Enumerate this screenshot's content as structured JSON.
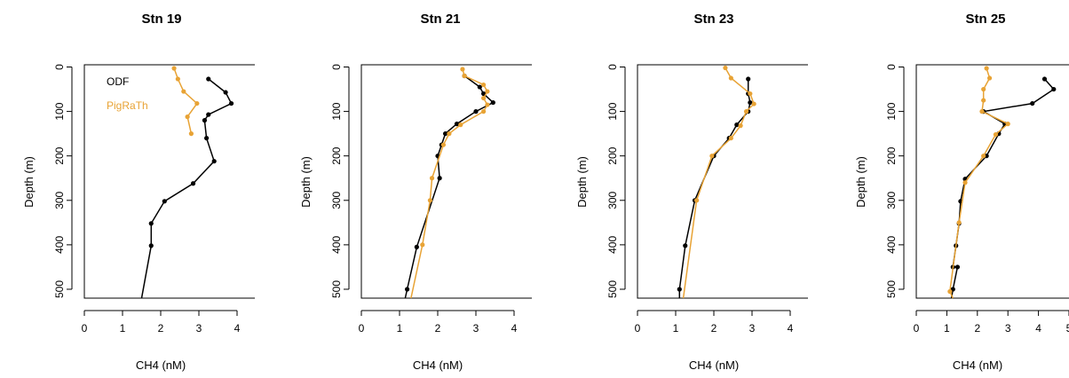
{
  "colors": {
    "ODF": "#000000",
    "PigRaTh": "#E8A335"
  },
  "chart_data": [
    {
      "type": "line",
      "title": "Stn 19",
      "xlabel": "CH4 (nM)",
      "ylabel": "Depth (m)",
      "xlim": [
        0,
        4
      ],
      "ylim": [
        520,
        -5
      ],
      "y_reversed": true,
      "x_ticks": [
        "0",
        "1",
        "2",
        "3",
        "4"
      ],
      "y_ticks": [
        "0",
        "100",
        "200",
        "300",
        "400",
        "500"
      ],
      "legend": {
        "placement": "top-left",
        "entries": [
          "ODF",
          "PigRaTh"
        ]
      },
      "series": [
        {
          "name": "ODF",
          "color": "#000000",
          "x": [
            3.25,
            3.7,
            3.85,
            3.25,
            3.15,
            3.2,
            3.4,
            2.85,
            2.1,
            1.75,
            1.75,
            1.5
          ],
          "y": [
            27,
            57,
            82,
            107,
            120,
            160,
            212,
            262,
            302,
            352,
            402,
            520
          ]
        },
        {
          "name": "PigRaTh",
          "color": "#E8A335",
          "x": [
            2.35,
            2.45,
            2.6,
            2.95,
            2.7,
            2.8
          ],
          "y": [
            3,
            27,
            55,
            82,
            112,
            150
          ]
        }
      ]
    },
    {
      "type": "line",
      "title": "Stn 21",
      "xlabel": "CH4 (nM)",
      "ylabel": "Depth (m)",
      "xlim": [
        0,
        4
      ],
      "ylim": [
        520,
        -5
      ],
      "y_reversed": true,
      "x_ticks": [
        "0",
        "1",
        "2",
        "3",
        "4"
      ],
      "y_ticks": [
        "0",
        "100",
        "200",
        "300",
        "400",
        "500"
      ],
      "series": [
        {
          "name": "ODF",
          "color": "#000000",
          "x": [
            2.7,
            3.1,
            3.2,
            3.45,
            3.0,
            2.5,
            2.2,
            2.1,
            2.0,
            2.05,
            1.45,
            1.2,
            1.15
          ],
          "y": [
            20,
            45,
            60,
            80,
            100,
            128,
            150,
            175,
            200,
            250,
            405,
            500,
            520
          ]
        },
        {
          "name": "PigRaTh",
          "color": "#E8A335",
          "x": [
            2.65,
            2.7,
            3.2,
            3.3,
            3.2,
            3.3,
            3.2,
            2.6,
            2.3,
            2.15,
            1.85,
            1.8,
            1.6,
            1.3
          ],
          "y": [
            5,
            20,
            40,
            55,
            70,
            85,
            100,
            130,
            150,
            175,
            250,
            300,
            400,
            520
          ]
        }
      ]
    },
    {
      "type": "line",
      "title": "Stn 23",
      "xlabel": "CH4 (nM)",
      "ylabel": "Depth (m)",
      "xlim": [
        0,
        4
      ],
      "ylim": [
        520,
        -5
      ],
      "y_reversed": true,
      "x_ticks": [
        "0",
        "1",
        "2",
        "3",
        "4"
      ],
      "y_ticks": [
        "0",
        "100",
        "200",
        "300",
        "400",
        "500"
      ],
      "series": [
        {
          "name": "ODF",
          "color": "#000000",
          "x": [
            2.9,
            2.9,
            2.95,
            2.9,
            2.6,
            2.4,
            2.0,
            1.5,
            1.25,
            1.1,
            1.1
          ],
          "y": [
            27,
            60,
            80,
            100,
            130,
            160,
            200,
            300,
            402,
            500,
            520
          ]
        },
        {
          "name": "PigRaTh",
          "color": "#E8A335",
          "x": [
            2.3,
            2.45,
            2.95,
            3.05,
            2.85,
            2.7,
            2.45,
            1.95,
            1.55,
            1.2
          ],
          "y": [
            2,
            25,
            60,
            83,
            100,
            132,
            160,
            200,
            300,
            520
          ]
        }
      ]
    },
    {
      "type": "line",
      "title": "Stn 25",
      "xlabel": "CH4 (nM)",
      "ylabel": "Depth (m)",
      "xlim": [
        0,
        5
      ],
      "ylim": [
        520,
        -5
      ],
      "y_reversed": true,
      "x_ticks": [
        "0",
        "1",
        "2",
        "3",
        "4",
        "5"
      ],
      "y_ticks": [
        "0",
        "100",
        "200",
        "300",
        "400",
        "500"
      ],
      "series": [
        {
          "name": "ODF",
          "color": "#000000",
          "x": [
            4.2,
            4.5,
            3.8,
            2.2,
            2.9,
            2.7,
            2.3,
            1.6,
            1.45,
            1.4,
            1.3,
            1.2,
            1.35,
            1.2,
            1.15
          ],
          "y": [
            27,
            50,
            82,
            100,
            128,
            150,
            200,
            252,
            302,
            352,
            402,
            450,
            450,
            500,
            520
          ]
        },
        {
          "name": "PigRaTh",
          "color": "#E8A335",
          "x": [
            2.3,
            2.4,
            2.2,
            2.2,
            2.15,
            3.0,
            2.6,
            2.2,
            1.6,
            1.4,
            1.1,
            1.2
          ],
          "y": [
            3,
            25,
            50,
            75,
            100,
            128,
            152,
            200,
            260,
            350,
            505,
            520
          ]
        }
      ]
    }
  ]
}
